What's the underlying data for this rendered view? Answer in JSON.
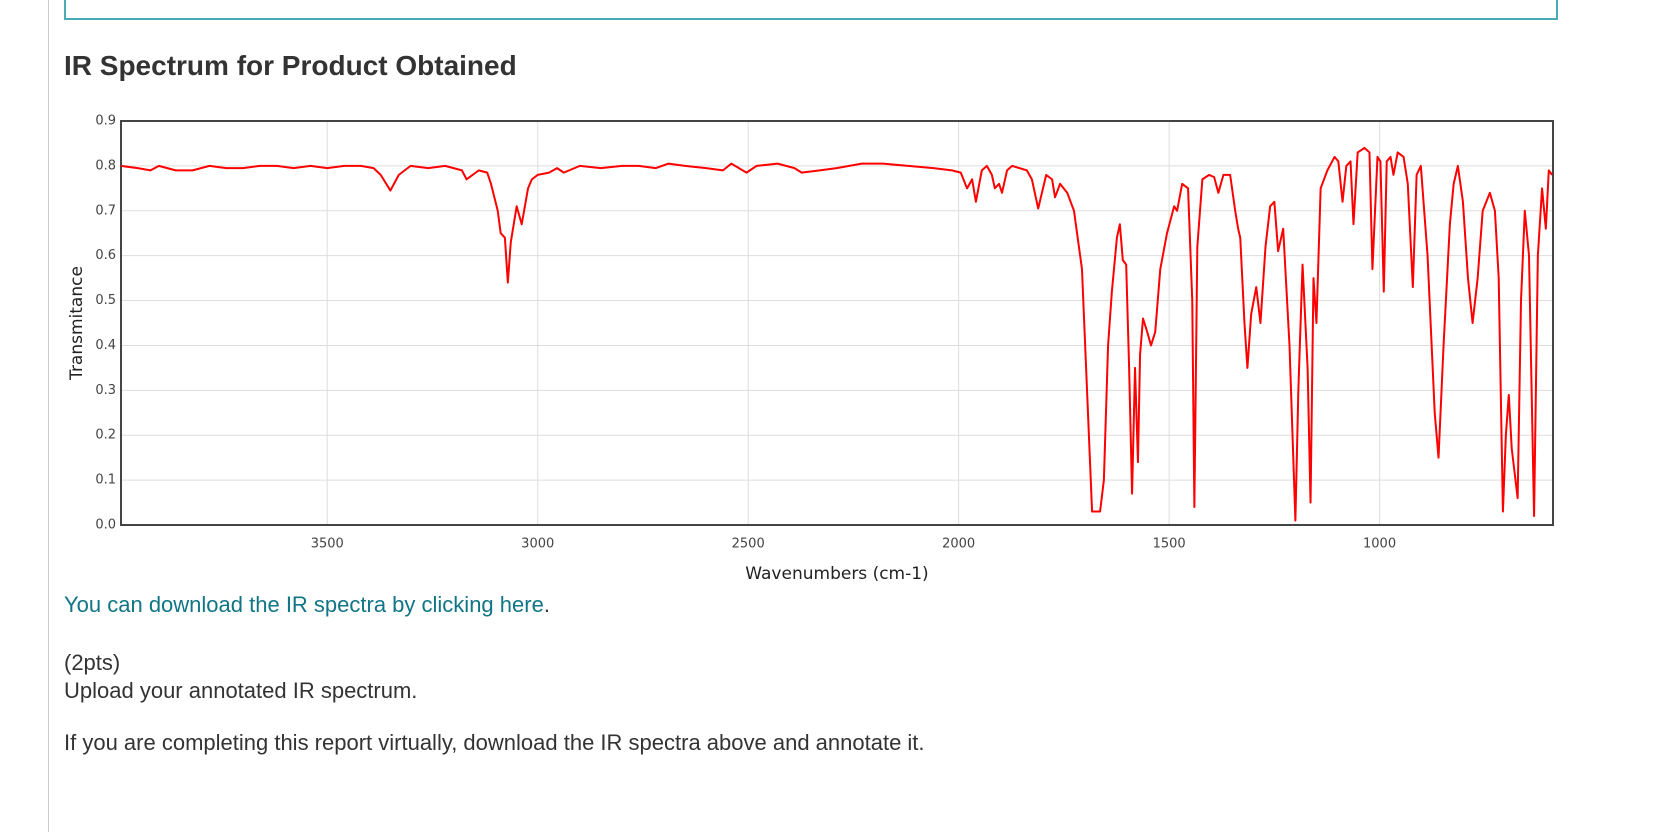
{
  "heading": "IR Spectrum for Product Obtained",
  "link_text": "You can download the IR spectra by clicking here",
  "link_suffix": ".",
  "points": "(2pts)",
  "instruction": "Upload your annotated IR spectrum.",
  "note": "If you are completing this report virtually, download the IR spectra above and annotate it.",
  "chart_data": {
    "type": "line",
    "xlabel": "Wavenumbers (cm-1)",
    "ylabel": "Transmitance",
    "color": "#ff0000",
    "grid": true,
    "xlim": [
      3990,
      588
    ],
    "ylim": [
      0,
      0.9
    ],
    "xticks": [
      3500,
      3000,
      2500,
      2000,
      1500,
      1000
    ],
    "yticks": [
      {
        "value": 0,
        "label": "0.0"
      },
      0.1,
      0.2,
      0.3,
      0.4,
      0.5,
      0.6,
      0.7,
      0.8,
      0.9
    ],
    "x": [
      3990,
      3950,
      3920,
      3900,
      3860,
      3820,
      3780,
      3740,
      3700,
      3660,
      3620,
      3580,
      3540,
      3500,
      3460,
      3420,
      3390,
      3373,
      3350,
      3330,
      3302,
      3260,
      3220,
      3180,
      3169,
      3140,
      3120,
      3111,
      3095,
      3088,
      3078,
      3071,
      3064,
      3050,
      3038,
      3023,
      3014,
      3000,
      2973,
      2954,
      2938,
      2900,
      2850,
      2800,
      2760,
      2720,
      2690,
      2650,
      2600,
      2560,
      2540,
      2504,
      2480,
      2430,
      2390,
      2373,
      2330,
      2290,
      2230,
      2180,
      2120,
      2060,
      2016,
      1995,
      1980,
      1968,
      1959,
      1945,
      1933,
      1921,
      1914,
      1904,
      1897,
      1885,
      1873,
      1838,
      1826,
      1811,
      1792,
      1778,
      1771,
      1759,
      1742,
      1726,
      1707,
      1695,
      1683,
      1664,
      1655,
      1645,
      1636,
      1624,
      1617,
      1610,
      1602,
      1595,
      1588,
      1581,
      1574,
      1569,
      1562,
      1552,
      1543,
      1533,
      1521,
      1505,
      1488,
      1481,
      1469,
      1455,
      1445,
      1440,
      1433,
      1421,
      1405,
      1393,
      1383,
      1371,
      1355,
      1343,
      1336,
      1331,
      1321,
      1314,
      1305,
      1293,
      1283,
      1271,
      1260,
      1250,
      1241,
      1229,
      1214,
      1200,
      1193,
      1183,
      1171,
      1164,
      1157,
      1150,
      1140,
      1124,
      1107,
      1098,
      1088,
      1079,
      1069,
      1062,
      1052,
      1036,
      1024,
      1017,
      1005,
      998,
      990,
      983,
      974,
      967,
      957,
      943,
      933,
      921,
      912,
      902,
      886,
      869,
      860,
      848,
      833,
      824,
      814,
      802,
      790,
      779,
      767,
      755,
      738,
      726,
      717,
      707,
      700,
      693,
      686,
      672,
      664,
      655,
      645,
      633,
      624,
      614,
      605,
      598,
      590
    ],
    "values": [
      0.8,
      0.795,
      0.79,
      0.8,
      0.79,
      0.79,
      0.8,
      0.795,
      0.795,
      0.8,
      0.8,
      0.795,
      0.8,
      0.795,
      0.8,
      0.8,
      0.795,
      0.78,
      0.745,
      0.78,
      0.8,
      0.795,
      0.8,
      0.79,
      0.77,
      0.79,
      0.785,
      0.76,
      0.7,
      0.65,
      0.64,
      0.54,
      0.63,
      0.71,
      0.67,
      0.75,
      0.77,
      0.78,
      0.785,
      0.795,
      0.785,
      0.8,
      0.795,
      0.8,
      0.8,
      0.795,
      0.805,
      0.8,
      0.795,
      0.79,
      0.805,
      0.785,
      0.8,
      0.805,
      0.795,
      0.785,
      0.79,
      0.795,
      0.805,
      0.805,
      0.8,
      0.795,
      0.79,
      0.785,
      0.75,
      0.77,
      0.72,
      0.79,
      0.8,
      0.78,
      0.75,
      0.76,
      0.74,
      0.79,
      0.8,
      0.79,
      0.77,
      0.705,
      0.78,
      0.77,
      0.73,
      0.76,
      0.74,
      0.7,
      0.57,
      0.3,
      0.03,
      0.03,
      0.1,
      0.4,
      0.52,
      0.64,
      0.67,
      0.59,
      0.58,
      0.35,
      0.07,
      0.35,
      0.14,
      0.38,
      0.46,
      0.43,
      0.4,
      0.43,
      0.57,
      0.65,
      0.71,
      0.7,
      0.76,
      0.75,
      0.5,
      0.04,
      0.62,
      0.77,
      0.78,
      0.775,
      0.74,
      0.78,
      0.78,
      0.7,
      0.66,
      0.64,
      0.45,
      0.35,
      0.47,
      0.53,
      0.45,
      0.62,
      0.71,
      0.72,
      0.61,
      0.66,
      0.4,
      0.01,
      0.3,
      0.58,
      0.35,
      0.05,
      0.55,
      0.45,
      0.75,
      0.79,
      0.82,
      0.81,
      0.72,
      0.8,
      0.81,
      0.67,
      0.83,
      0.84,
      0.83,
      0.57,
      0.82,
      0.81,
      0.52,
      0.81,
      0.82,
      0.78,
      0.83,
      0.82,
      0.76,
      0.53,
      0.78,
      0.8,
      0.6,
      0.25,
      0.15,
      0.4,
      0.67,
      0.76,
      0.8,
      0.72,
      0.55,
      0.45,
      0.55,
      0.7,
      0.74,
      0.7,
      0.55,
      0.03,
      0.2,
      0.29,
      0.17,
      0.06,
      0.5,
      0.7,
      0.6,
      0.02,
      0.6,
      0.75,
      0.66,
      0.79,
      0.78
    ]
  }
}
